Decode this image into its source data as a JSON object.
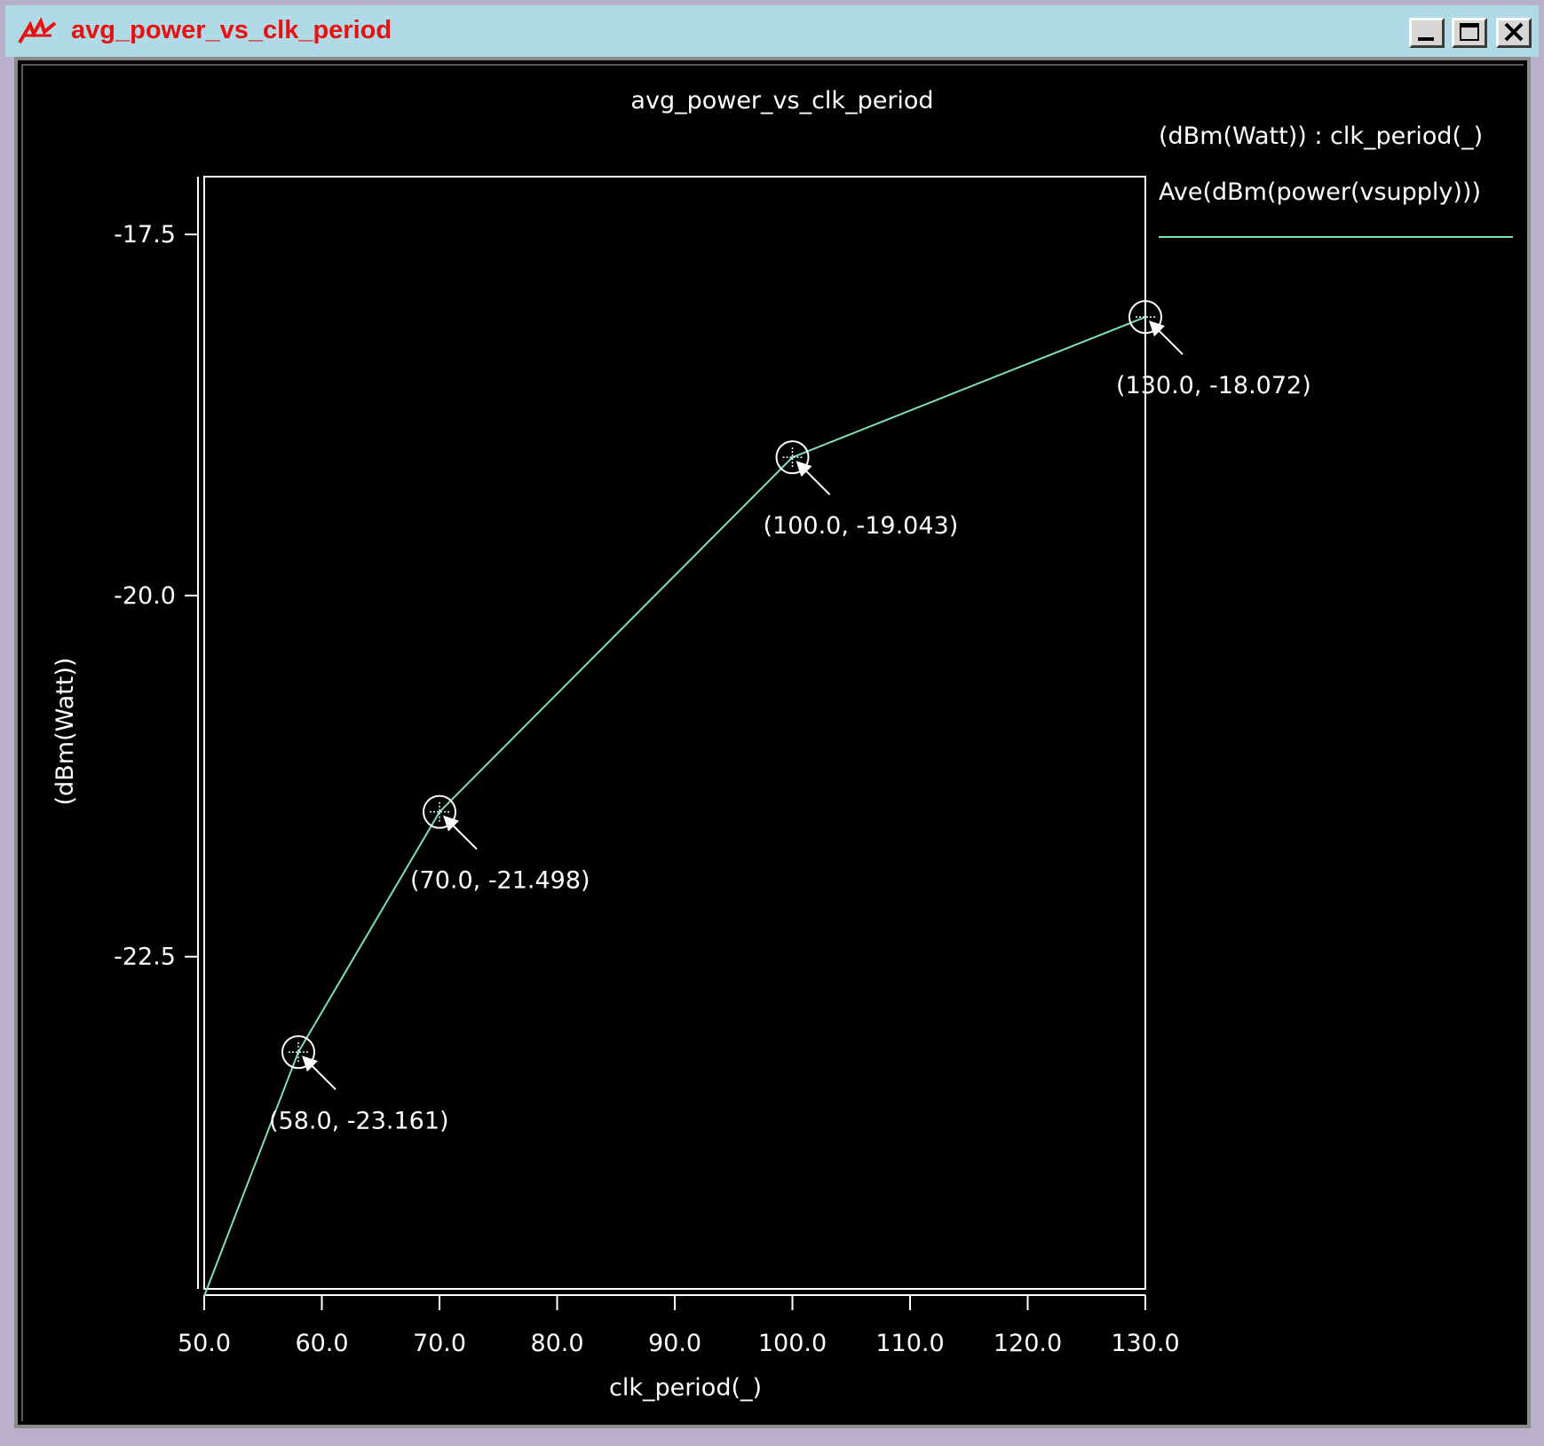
{
  "window": {
    "title": "avg_power_vs_clk_period",
    "icon": "waveform-app-icon",
    "buttons": {
      "minimize": "minimize-icon",
      "maximize": "maximize-icon",
      "close": "close-icon"
    },
    "title_color": "#e81010",
    "titlebar_color": "#b0dbe6"
  },
  "chart_data": {
    "type": "line",
    "title": "avg_power_vs_clk_period",
    "xlabel": "clk_period(_)",
    "ylabel": "(dBm(Watt))",
    "xlim": [
      50,
      130
    ],
    "ylim": [
      -24.8,
      -17.1
    ],
    "x_ticks": [
      50,
      60,
      70,
      80,
      90,
      100,
      110,
      120,
      130
    ],
    "x_tick_labels": [
      "50.0",
      "60.0",
      "70.0",
      "80.0",
      "90.0",
      "100.0",
      "110.0",
      "120.0",
      "130.0"
    ],
    "y_ticks": [
      -17.5,
      -20.0,
      -22.5
    ],
    "y_tick_labels": [
      "-17.5",
      "-20.0",
      "-22.5"
    ],
    "legend": {
      "header": "(dBm(Watt)) : clk_period(_)",
      "placement": "top-right outside plot",
      "entries": [
        {
          "label": "Ave(dBm(power(vsupply)))",
          "color": "#7fe0b0"
        }
      ]
    },
    "series": [
      {
        "name": "Ave(dBm(power(vsupply)))",
        "color": "#7fe0b0",
        "x": [
          50,
          58,
          70,
          100,
          130
        ],
        "y": [
          -24.85,
          -23.161,
          -21.498,
          -19.043,
          -18.072
        ]
      }
    ],
    "markers": [
      {
        "x": 58,
        "y": -23.161,
        "label": "(58.0, -23.161)"
      },
      {
        "x": 70,
        "y": -21.498,
        "label": "(70.0, -21.498)"
      },
      {
        "x": 100,
        "y": -19.043,
        "label": "(100.0, -19.043)"
      },
      {
        "x": 130,
        "y": -18.072,
        "label": "(130.0, -18.072)"
      }
    ],
    "grid": false,
    "background": "#000000",
    "axis_color": "#ffffff"
  }
}
